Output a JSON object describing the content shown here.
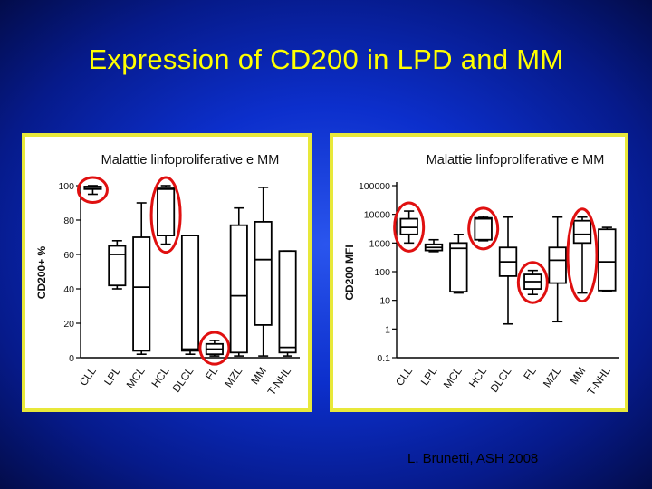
{
  "title": "Expression of CD200 in LPD and MM",
  "credit": "L. Brunetti, ASH 2008",
  "highlight_color": "#e01010",
  "chart_data": [
    {
      "type": "boxplot",
      "title": "Malattie linfoproliferative e MM",
      "ylabel": "CD200+ %",
      "yscale": "linear",
      "ylim": [
        0,
        100
      ],
      "yticks": [
        0,
        20,
        40,
        60,
        80,
        100
      ],
      "ytick_labels": [
        "0",
        "20",
        "40",
        "60",
        "80",
        "100"
      ],
      "categories": [
        "CLL",
        "LPL",
        "MCL",
        "HCL",
        "DLCL",
        "FL",
        "MZL",
        "MM",
        "T-NHL"
      ],
      "boxes": [
        {
          "min": 95,
          "q1": 98,
          "median": 99,
          "q3": 99.5,
          "max": 100
        },
        {
          "min": 40,
          "q1": 42,
          "median": 60,
          "q3": 65,
          "max": 68
        },
        {
          "min": 2,
          "q1": 4,
          "median": 41,
          "q3": 70,
          "max": 90
        },
        {
          "min": 66,
          "q1": 71,
          "median": 98,
          "q3": 99,
          "max": 100
        },
        {
          "min": 2,
          "q1": 4,
          "median": 5,
          "q3": 71,
          "max": 71
        },
        {
          "min": 1,
          "q1": 2,
          "median": 5,
          "q3": 8,
          "max": 10
        },
        {
          "min": 1,
          "q1": 3,
          "median": 36,
          "q3": 77,
          "max": 87
        },
        {
          "min": 1,
          "q1": 19,
          "median": 57,
          "q3": 79,
          "max": 99
        },
        {
          "min": 1,
          "q1": 3,
          "median": 6,
          "q3": 62,
          "max": 62
        }
      ],
      "circled": [
        "CLL",
        "HCL",
        "FL"
      ]
    },
    {
      "type": "boxplot",
      "title": "Malattie linfoproliferative e MM",
      "ylabel": "CD200 MFI",
      "yscale": "log",
      "ylim": [
        0.1,
        100000
      ],
      "yticks": [
        0.1,
        1,
        10,
        100,
        1000,
        10000,
        100000
      ],
      "ytick_labels": [
        "0.1",
        "1",
        "10",
        "100",
        "1000",
        "10000",
        "100000"
      ],
      "categories": [
        "CLL",
        "LPL",
        "MCL",
        "HCL",
        "DLCL",
        "FL",
        "MZL",
        "MM",
        "T-NHL"
      ],
      "boxes": [
        {
          "min": 1000,
          "q1": 2000,
          "median": 3500,
          "q3": 7000,
          "max": 13000
        },
        {
          "min": 500,
          "q1": 550,
          "median": 700,
          "q3": 900,
          "max": 1300
        },
        {
          "min": 18,
          "q1": 20,
          "median": 650,
          "q3": 1000,
          "max": 2000
        },
        {
          "min": 1200,
          "q1": 1300,
          "median": 7000,
          "q3": 7500,
          "max": 8500
        },
        {
          "min": 1.5,
          "q1": 70,
          "median": 220,
          "q3": 700,
          "max": 8000
        },
        {
          "min": 16,
          "q1": 25,
          "median": 45,
          "q3": 80,
          "max": 110
        },
        {
          "min": 1.8,
          "q1": 40,
          "median": 250,
          "q3": 700,
          "max": 8000
        },
        {
          "min": 18,
          "q1": 1000,
          "median": 2000,
          "q3": 6000,
          "max": 8000
        },
        {
          "min": 20,
          "q1": 22,
          "median": 220,
          "q3": 3000,
          "max": 3500
        }
      ],
      "circled": [
        "CLL",
        "HCL",
        "FL",
        "MM"
      ]
    }
  ]
}
